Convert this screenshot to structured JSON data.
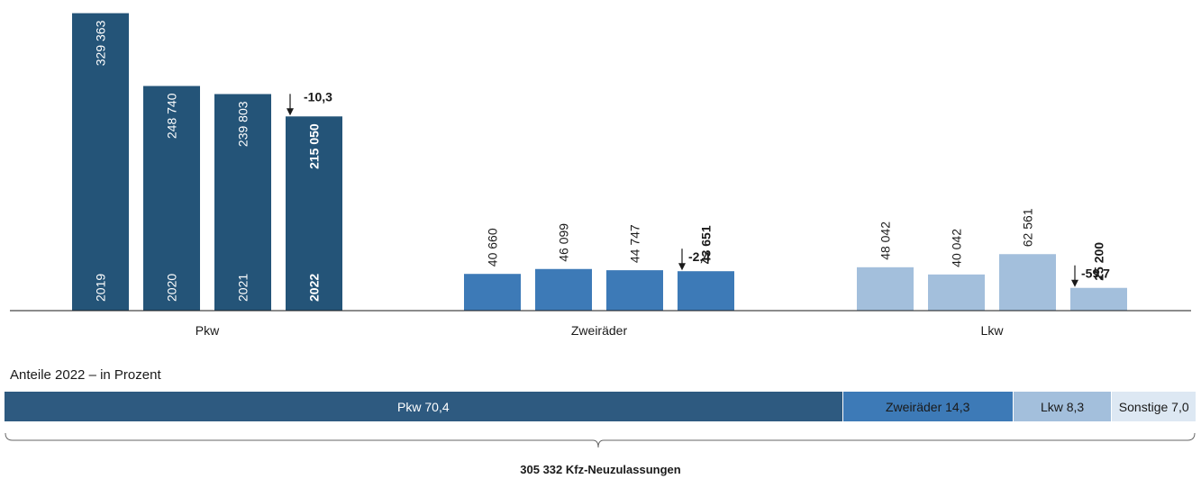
{
  "chart_data": {
    "type": "bar",
    "ylim": [
      0,
      330000
    ],
    "groups": [
      {
        "label": "Pkw",
        "color": "#245478",
        "change": "-10,3",
        "change_label_pos": "above",
        "bars": [
          {
            "year": "2019",
            "value": 329363,
            "label": "329 363"
          },
          {
            "year": "2020",
            "value": 248740,
            "label": "248 740"
          },
          {
            "year": "2021",
            "value": 239803,
            "label": "239 803"
          },
          {
            "year": "2022",
            "value": 215050,
            "label": "215 050"
          }
        ]
      },
      {
        "label": "Zweiräder",
        "color": "#3d7ab7",
        "change": "-2,4",
        "change_label_pos": "right",
        "bars": [
          {
            "value": 40660,
            "label": "40 660"
          },
          {
            "value": 46099,
            "label": "46 099"
          },
          {
            "value": 44747,
            "label": "44 747"
          },
          {
            "value": 43651,
            "label": "43 651"
          }
        ]
      },
      {
        "label": "Lkw",
        "color": "#a3bfdc",
        "change": "-59,7",
        "change_label_pos": "right",
        "bars": [
          {
            "value": 48042,
            "label": "48 042"
          },
          {
            "value": 40042,
            "label": "40 042"
          },
          {
            "value": 62561,
            "label": "62 561"
          },
          {
            "value": 25200,
            "label": "25 200"
          }
        ]
      }
    ]
  },
  "shares": {
    "title": "Anteile 2022 – in Prozent",
    "segments": [
      {
        "label": "Pkw 70,4",
        "value": 70.4,
        "color": "#2e5a80",
        "text_color": "#ffffff"
      },
      {
        "label": "Zweiräder 14,3",
        "value": 14.3,
        "color": "#3d7ab7",
        "text_color": "#1a1a1a"
      },
      {
        "label": "Lkw 8,3",
        "value": 8.3,
        "color": "#a3bfdc",
        "text_color": "#1a1a1a"
      },
      {
        "label": "Sonstige 7,0",
        "value": 7.0,
        "color": "#dde8f3",
        "text_color": "#1a1a1a"
      }
    ],
    "total_label": "305 332 Kfz-Neuzulassungen"
  }
}
